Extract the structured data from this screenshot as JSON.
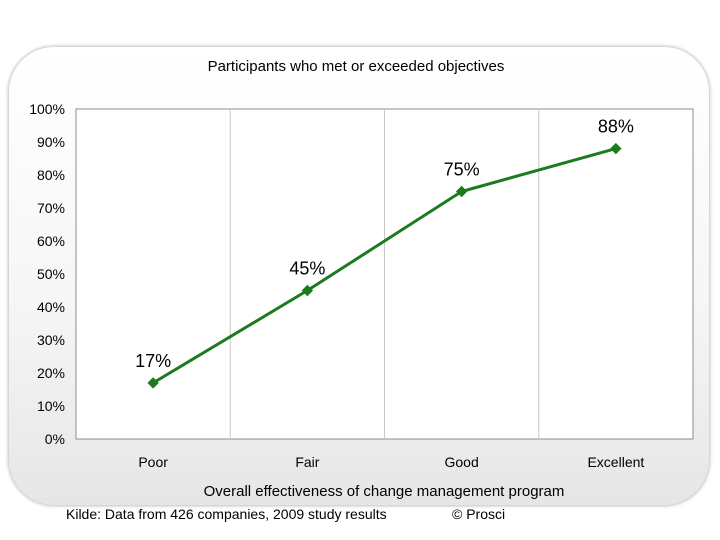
{
  "chart_data": {
    "type": "line",
    "title": "Participants who met or exceeded objectives",
    "xlabel": "Overall effectiveness of change management program",
    "ylabel": "",
    "categories": [
      "Poor",
      "Fair",
      "Good",
      "Excellent"
    ],
    "values": [
      17,
      45,
      75,
      88
    ],
    "data_labels": [
      "17%",
      "45%",
      "75%",
      "88%"
    ],
    "ylim": [
      0,
      100
    ],
    "yticks": [
      "0%",
      "10%",
      "20%",
      "30%",
      "40%",
      "50%",
      "60%",
      "70%",
      "80%",
      "90%",
      "100%"
    ],
    "grid": "vertical",
    "legend": "none",
    "colors": {
      "series": "#1e7a1e",
      "grid": "#c8c8c8",
      "frame": "#8c8c8c"
    }
  },
  "footer": {
    "source": "Kilde: Data from 426 companies, 2009 study results",
    "copyright": "© Prosci"
  }
}
